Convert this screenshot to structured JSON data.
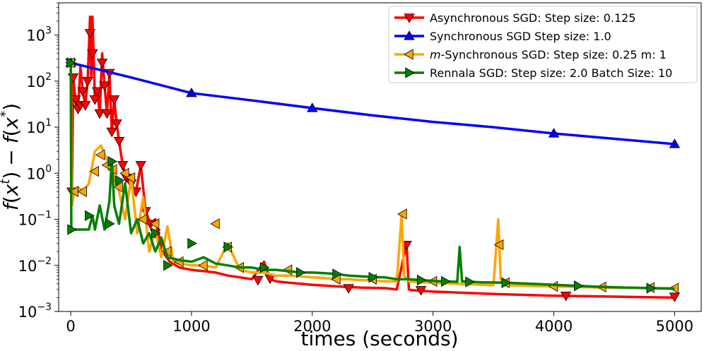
{
  "chart_data": {
    "type": "line",
    "title": "",
    "xlabel": "times (seconds)",
    "ylabel_parts": {
      "f": "f",
      "x": "x",
      "sup_t": "t",
      "sup_star": "*",
      "open": "(",
      "close": ")",
      "minus": "−"
    },
    "xlim": [
      -100,
      5220
    ],
    "ylim": [
      0.001,
      5000
    ],
    "yscale": "log",
    "x_ticks": [
      0,
      1000,
      2000,
      3000,
      4000,
      5000
    ],
    "x_tick_labels": [
      "0",
      "1000",
      "2000",
      "3000",
      "4000",
      "5000"
    ],
    "y_ticks": [
      0.001,
      0.01,
      0.1,
      1,
      10,
      100,
      1000
    ],
    "y_tick_base": "10",
    "y_tick_exponents": [
      "−3",
      "−2",
      "−1",
      "0",
      "1",
      "2",
      "3"
    ],
    "grid": false,
    "legend_position": "top-right",
    "series": [
      {
        "name": "Asynchronous SGD: Step size: 0.125",
        "legend_prefix": "",
        "legend_italic": "",
        "legend_suffix": "Asynchronous SGD: Step size: 0.125",
        "color": "#ff0000",
        "marker": "triangle-down",
        "x": [
          0,
          10,
          20,
          40,
          60,
          80,
          100,
          120,
          140,
          160,
          170,
          180,
          200,
          220,
          240,
          260,
          280,
          300,
          320,
          340,
          360,
          380,
          400,
          430,
          460,
          500,
          540,
          580,
          620,
          660,
          700,
          760,
          820,
          900,
          1000,
          1100,
          1200,
          1300,
          1400,
          1500,
          1600,
          1650,
          1700,
          1800,
          1900,
          2000,
          2200,
          2400,
          2600,
          2700,
          2780,
          2800,
          2820,
          2900,
          3000,
          3500,
          4000,
          4500,
          5000
        ],
        "y": [
          250,
          0.4,
          120,
          40,
          25,
          200,
          60,
          30,
          100,
          2500,
          120,
          2500,
          40,
          60,
          20,
          400,
          80,
          20,
          150,
          8,
          40,
          12,
          5,
          1.5,
          0.8,
          0.6,
          0.4,
          1.5,
          0.15,
          0.08,
          0.1,
          0.02,
          0.012,
          0.009,
          0.008,
          0.0075,
          0.007,
          0.006,
          0.0055,
          0.005,
          0.012,
          0.005,
          0.0045,
          0.0042,
          0.004,
          0.0038,
          0.0035,
          0.0033,
          0.0032,
          0.003,
          0.03,
          0.003,
          0.0029,
          0.0028,
          0.0027,
          0.0024,
          0.0022,
          0.0021,
          0.002
        ],
        "marker_x": [
          0,
          10,
          20,
          40,
          60,
          80,
          100,
          120,
          140,
          160,
          180,
          200,
          220,
          240,
          260,
          280,
          300,
          320,
          340,
          360,
          380,
          400,
          430,
          460,
          500,
          540,
          580,
          620,
          660,
          700,
          1550,
          1650,
          2300,
          2780,
          2900,
          4100,
          5000
        ],
        "marker_y": [
          250,
          0.4,
          120,
          40,
          25,
          30,
          60,
          30,
          100,
          1100,
          400,
          40,
          60,
          20,
          250,
          80,
          20,
          150,
          8,
          40,
          12,
          5,
          1.5,
          0.8,
          0.6,
          0.4,
          1.5,
          0.15,
          0.08,
          0.05,
          0.0048,
          0.0052,
          0.0032,
          0.028,
          0.0029,
          0.0022,
          0.0021
        ]
      },
      {
        "name": "Synchronous SGD Step size: 1.0",
        "legend_prefix": "",
        "legend_italic": "",
        "legend_suffix": "Synchronous SGD Step size: 1.0",
        "color": "#0000ff",
        "marker": "triangle-up",
        "x": [
          0,
          500,
          1000,
          1500,
          2000,
          2500,
          3000,
          3500,
          4000,
          4500,
          5000
        ],
        "y": [
          250,
          120,
          55,
          38,
          26,
          18,
          13,
          10,
          7.3,
          5.6,
          4.3
        ],
        "marker_x": [
          0,
          1000,
          2000,
          4000,
          5000
        ],
        "marker_y": [
          250,
          55,
          26,
          7.3,
          4.3
        ]
      },
      {
        "name": "m-Synchronous SGD: Step size: 0.25 m: 1",
        "legend_prefix": "",
        "legend_italic": "m",
        "legend_suffix": "-Synchronous  SGD: Step size: 0.25 m: 1",
        "color": "#ffa500",
        "marker": "triangle-left",
        "x": [
          0,
          10,
          30,
          60,
          100,
          150,
          200,
          250,
          300,
          350,
          400,
          450,
          500,
          550,
          600,
          650,
          700,
          750,
          800,
          850,
          900,
          1000,
          1100,
          1200,
          1300,
          1400,
          1500,
          1600,
          1700,
          1800,
          1900,
          2000,
          2100,
          2200,
          2300,
          2400,
          2500,
          2600,
          2700,
          2740,
          2760,
          2800,
          2900,
          3000,
          3200,
          3400,
          3500,
          3540,
          3560,
          3600,
          3800,
          4000,
          4200,
          4400,
          4600,
          4800,
          5000
        ],
        "y": [
          250,
          0.2,
          0.4,
          0.5,
          0.4,
          0.6,
          3,
          4,
          2,
          1,
          0.4,
          0.1,
          0.8,
          0.05,
          0.3,
          0.02,
          0.06,
          0.015,
          0.07,
          0.012,
          0.011,
          0.01,
          0.01,
          0.009,
          0.03,
          0.008,
          0.007,
          0.007,
          0.006,
          0.006,
          0.0058,
          0.0055,
          0.0053,
          0.005,
          0.005,
          0.0048,
          0.0047,
          0.0045,
          0.0045,
          0.13,
          0.006,
          0.0045,
          0.0043,
          0.0042,
          0.004,
          0.0038,
          0.0037,
          0.1,
          0.005,
          0.0037,
          0.0036,
          0.0035,
          0.0034,
          0.0033,
          0.0033,
          0.0032,
          0.0032
        ],
        "marker_x": [
          0,
          30,
          100,
          200,
          250,
          300,
          350,
          400,
          450,
          500,
          600,
          700,
          800,
          900,
          1100,
          1200,
          1300,
          1400,
          1800,
          2200,
          2500,
          2750,
          3000,
          3550,
          3600,
          4000,
          4400,
          4800,
          5000
        ],
        "marker_y": [
          250,
          0.4,
          0.4,
          1.1,
          2.5,
          1.5,
          1.2,
          0.5,
          1,
          0.8,
          0.1,
          0.08,
          0.02,
          0.012,
          0.01,
          0.08,
          0.025,
          0.009,
          0.008,
          0.005,
          0.005,
          0.13,
          0.0045,
          0.028,
          0.0042,
          0.0035,
          0.0034,
          0.0033,
          0.0032
        ]
      },
      {
        "name": "Rennala SGD: Step size: 2.0 Batch Size: 10",
        "legend_prefix": "",
        "legend_italic": "",
        "legend_suffix": "Rennala SGD: Step size: 2.0 Batch Size: 10",
        "color": "#008000",
        "marker": "triangle-right",
        "x": [
          0,
          5,
          10,
          20,
          40,
          60,
          80,
          100,
          120,
          150,
          180,
          200,
          240,
          280,
          320,
          340,
          360,
          400,
          450,
          500,
          550,
          600,
          650,
          700,
          750,
          800,
          900,
          1000,
          1100,
          1200,
          1300,
          1400,
          1500,
          1600,
          1700,
          1800,
          1900,
          2000,
          2100,
          2200,
          2300,
          2400,
          2500,
          2600,
          2700,
          2800,
          2900,
          3000,
          3100,
          3200,
          3220,
          3240,
          3400,
          3600,
          3800,
          4000,
          4200,
          4400,
          4600,
          4800,
          5000
        ],
        "y": [
          250,
          0.06,
          0.06,
          0.06,
          0.06,
          0.06,
          0.06,
          0.06,
          0.06,
          0.06,
          0.12,
          0.06,
          0.2,
          0.06,
          0.25,
          2.0,
          0.2,
          0.08,
          0.6,
          0.05,
          0.1,
          0.03,
          0.05,
          0.02,
          0.04,
          0.015,
          0.013,
          0.012,
          0.015,
          0.011,
          0.01,
          0.009,
          0.009,
          0.008,
          0.008,
          0.0075,
          0.007,
          0.007,
          0.0068,
          0.0065,
          0.006,
          0.0058,
          0.0056,
          0.0055,
          0.005,
          0.005,
          0.0048,
          0.0046,
          0.0045,
          0.0044,
          0.025,
          0.0045,
          0.0043,
          0.0042,
          0.004,
          0.0038,
          0.0036,
          0.0034,
          0.0033,
          0.0032,
          0.0031
        ],
        "marker_x": [
          0,
          5,
          150,
          320,
          340,
          400,
          700,
          800,
          1000,
          1300,
          1600,
          1900,
          2200,
          2500,
          2900,
          3100,
          3300,
          3600,
          4200,
          4800
        ],
        "marker_y": [
          250,
          0.06,
          0.12,
          0.08,
          1.8,
          0.7,
          0.05,
          0.01,
          0.03,
          0.025,
          0.009,
          0.007,
          0.0065,
          0.0055,
          0.0048,
          0.0045,
          0.0044,
          0.0042,
          0.0036,
          0.0032
        ]
      }
    ]
  }
}
